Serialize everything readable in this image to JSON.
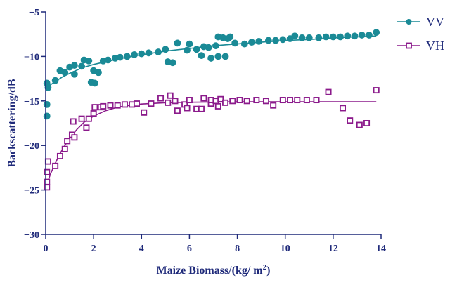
{
  "chart_data": {
    "type": "scatter",
    "title": "",
    "xlabel_main": "Maize Biomass/(kg/ m",
    "xlabel_sup": "2",
    "xlabel_end": ")",
    "ylabel": "Backscattering/dB",
    "xlim": [
      0,
      14
    ],
    "ylim": [
      -30,
      -5
    ],
    "xticks": [
      0,
      2,
      4,
      6,
      8,
      10,
      12,
      14
    ],
    "yticks": [
      -30,
      -25,
      -20,
      -15,
      -10,
      -5
    ],
    "xtick_labels": [
      "0",
      "2",
      "4",
      "6",
      "8",
      "10",
      "12",
      "14"
    ],
    "ytick_labels": [
      "−30",
      "−25",
      "−20",
      "−15",
      "−10",
      "−5"
    ],
    "legend_position": "top-right",
    "series": [
      {
        "name": "VV",
        "color": "#1a8a96",
        "marker": "circle",
        "points": [
          [
            0.05,
            -16.7
          ],
          [
            0.05,
            -15.4
          ],
          [
            0.05,
            -13.0
          ],
          [
            0.1,
            -13.5
          ],
          [
            0.4,
            -12.7
          ],
          [
            0.6,
            -11.6
          ],
          [
            0.8,
            -11.8
          ],
          [
            1.0,
            -11.2
          ],
          [
            1.2,
            -11.0
          ],
          [
            1.2,
            -12.0
          ],
          [
            1.5,
            -11.1
          ],
          [
            1.6,
            -10.4
          ],
          [
            1.8,
            -10.5
          ],
          [
            1.9,
            -12.9
          ],
          [
            2.0,
            -11.6
          ],
          [
            2.05,
            -13.0
          ],
          [
            2.2,
            -11.8
          ],
          [
            2.4,
            -10.5
          ],
          [
            2.6,
            -10.4
          ],
          [
            2.9,
            -10.2
          ],
          [
            3.1,
            -10.1
          ],
          [
            3.4,
            -10.0
          ],
          [
            3.7,
            -9.8
          ],
          [
            4.0,
            -9.7
          ],
          [
            4.3,
            -9.6
          ],
          [
            4.7,
            -9.5
          ],
          [
            5.0,
            -9.2
          ],
          [
            5.1,
            -10.6
          ],
          [
            5.3,
            -10.7
          ],
          [
            5.5,
            -8.5
          ],
          [
            5.9,
            -9.3
          ],
          [
            6.0,
            -8.6
          ],
          [
            6.3,
            -9.2
          ],
          [
            6.5,
            -9.9
          ],
          [
            6.6,
            -8.9
          ],
          [
            6.8,
            -9.0
          ],
          [
            6.9,
            -10.2
          ],
          [
            7.1,
            -8.8
          ],
          [
            7.2,
            -7.8
          ],
          [
            7.2,
            -10.0
          ],
          [
            7.4,
            -7.9
          ],
          [
            7.5,
            -10.0
          ],
          [
            7.6,
            -8.0
          ],
          [
            7.7,
            -7.8
          ],
          [
            7.9,
            -8.5
          ],
          [
            8.3,
            -8.6
          ],
          [
            8.6,
            -8.4
          ],
          [
            8.9,
            -8.3
          ],
          [
            9.3,
            -8.2
          ],
          [
            9.6,
            -8.2
          ],
          [
            9.9,
            -8.1
          ],
          [
            10.2,
            -8.0
          ],
          [
            10.4,
            -7.7
          ],
          [
            10.7,
            -7.9
          ],
          [
            11.0,
            -7.9
          ],
          [
            11.4,
            -7.9
          ],
          [
            11.7,
            -7.8
          ],
          [
            12.0,
            -7.8
          ],
          [
            12.3,
            -7.8
          ],
          [
            12.6,
            -7.7
          ],
          [
            12.9,
            -7.7
          ],
          [
            13.2,
            -7.6
          ],
          [
            13.5,
            -7.6
          ],
          [
            13.8,
            -7.3
          ]
        ],
        "fit": [
          [
            0.0,
            -13.6
          ],
          [
            0.3,
            -13.0
          ],
          [
            0.7,
            -12.3
          ],
          [
            1.0,
            -11.9
          ],
          [
            1.5,
            -11.3
          ],
          [
            2.0,
            -10.9
          ],
          [
            3.0,
            -10.3
          ],
          [
            4.0,
            -9.8
          ],
          [
            5.0,
            -9.4
          ],
          [
            6.0,
            -9.1
          ],
          [
            7.0,
            -8.8
          ],
          [
            8.0,
            -8.6
          ],
          [
            9.0,
            -8.4
          ],
          [
            10.0,
            -8.2
          ],
          [
            11.0,
            -8.1
          ],
          [
            12.0,
            -7.9
          ],
          [
            13.0,
            -7.8
          ],
          [
            13.8,
            -7.7
          ]
        ]
      },
      {
        "name": "VH",
        "color": "#8b1a8b",
        "marker": "square",
        "points": [
          [
            0.05,
            -24.7
          ],
          [
            0.05,
            -24.1
          ],
          [
            0.05,
            -23.0
          ],
          [
            0.1,
            -21.8
          ],
          [
            0.4,
            -22.3
          ],
          [
            0.6,
            -21.2
          ],
          [
            0.8,
            -20.4
          ],
          [
            0.9,
            -19.5
          ],
          [
            1.1,
            -18.8
          ],
          [
            1.15,
            -17.3
          ],
          [
            1.2,
            -19.1
          ],
          [
            1.5,
            -17.0
          ],
          [
            1.7,
            -18.0
          ],
          [
            1.8,
            -17.0
          ],
          [
            2.0,
            -16.4
          ],
          [
            2.05,
            -15.7
          ],
          [
            2.3,
            -15.7
          ],
          [
            2.4,
            -15.6
          ],
          [
            2.7,
            -15.5
          ],
          [
            3.0,
            -15.5
          ],
          [
            3.3,
            -15.4
          ],
          [
            3.6,
            -15.4
          ],
          [
            3.8,
            -15.3
          ],
          [
            4.1,
            -16.3
          ],
          [
            4.4,
            -15.3
          ],
          [
            4.8,
            -14.7
          ],
          [
            5.1,
            -15.2
          ],
          [
            5.2,
            -14.4
          ],
          [
            5.4,
            -15.0
          ],
          [
            5.5,
            -16.1
          ],
          [
            5.8,
            -15.4
          ],
          [
            5.9,
            -15.8
          ],
          [
            6.0,
            -14.9
          ],
          [
            6.3,
            -15.9
          ],
          [
            6.5,
            -15.9
          ],
          [
            6.6,
            -14.7
          ],
          [
            6.9,
            -15.3
          ],
          [
            6.9,
            -14.9
          ],
          [
            7.1,
            -15.0
          ],
          [
            7.2,
            -15.6
          ],
          [
            7.3,
            -14.8
          ],
          [
            7.5,
            -15.2
          ],
          [
            7.8,
            -15.0
          ],
          [
            8.1,
            -14.9
          ],
          [
            8.4,
            -15.0
          ],
          [
            8.8,
            -14.9
          ],
          [
            9.2,
            -15.0
          ],
          [
            9.5,
            -15.5
          ],
          [
            9.9,
            -14.9
          ],
          [
            10.2,
            -14.9
          ],
          [
            10.5,
            -14.9
          ],
          [
            10.9,
            -14.9
          ],
          [
            11.3,
            -14.9
          ],
          [
            11.8,
            -14.0
          ],
          [
            12.4,
            -15.8
          ],
          [
            12.7,
            -17.2
          ],
          [
            13.1,
            -17.7
          ],
          [
            13.4,
            -17.5
          ],
          [
            13.8,
            -13.8
          ]
        ],
        "fit": [
          [
            0.0,
            -24.8
          ],
          [
            0.2,
            -23.2
          ],
          [
            0.4,
            -22.0
          ],
          [
            0.6,
            -20.9
          ],
          [
            0.8,
            -20.0
          ],
          [
            1.0,
            -19.2
          ],
          [
            1.3,
            -18.2
          ],
          [
            1.6,
            -17.4
          ],
          [
            2.0,
            -16.7
          ],
          [
            2.5,
            -16.1
          ],
          [
            3.0,
            -15.7
          ],
          [
            3.5,
            -15.5
          ],
          [
            4.0,
            -15.35
          ],
          [
            5.0,
            -15.2
          ],
          [
            6.0,
            -15.15
          ],
          [
            8.0,
            -15.1
          ],
          [
            10.0,
            -15.1
          ],
          [
            12.0,
            -15.1
          ],
          [
            13.8,
            -15.1
          ]
        ]
      }
    ]
  }
}
